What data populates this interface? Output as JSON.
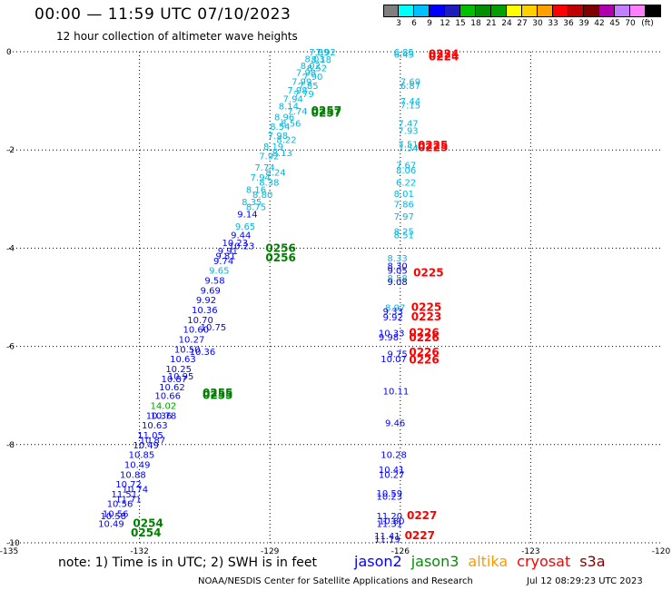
{
  "title": "00:00 — 11:59 UTC 07/10/2023",
  "subtitle": "12 hour collection of altimeter wave heights",
  "scale": {
    "colors": [
      "#7f7f7f",
      "#00ffff",
      "#00bfff",
      "#0000ff",
      "#1c1cc0",
      "#00c000",
      "#009000",
      "#00a000",
      "#ffff00",
      "#ffd000",
      "#ffa000",
      "#ff0000",
      "#c00000",
      "#800000",
      "#b000b0",
      "#c080ff",
      "#ff80ff",
      "#000000"
    ],
    "labels": [
      "3",
      "6",
      "9",
      "12",
      "15",
      "18",
      "21",
      "24",
      "27",
      "30",
      "33",
      "36",
      "39",
      "42",
      "45",
      "70",
      "(ft)"
    ]
  },
  "note": "note: 1) Time is in UTC; 2) SWH is in feet",
  "legend": [
    {
      "label": "jason2",
      "color": "#0000ff"
    },
    {
      "label": "jason3",
      "color": "#009000"
    },
    {
      "label": "altika",
      "color": "#ff9900"
    },
    {
      "label": "cryosat",
      "color": "#ff0000"
    },
    {
      "label": "s3a",
      "color": "#800000"
    }
  ],
  "footer_left": "NOAA/NESDIS Center for Satellite Applications and Research",
  "footer_right": "Jul 12 08:29:23 UTC 2023",
  "chart_data": {
    "type": "scatter",
    "xlim": [
      -135,
      -120
    ],
    "ylim": [
      -10,
      0
    ],
    "xticks": [
      "-135",
      "-132",
      "-129",
      "-126",
      "-123",
      "-120"
    ],
    "yticks": [
      "0",
      "-2",
      "-4",
      "-6",
      "-8",
      "-10"
    ],
    "grid": true,
    "track_a": [
      {
        "x": -128.1,
        "y": 0.0,
        "t": "7.89",
        "c": "#00b8e0"
      },
      {
        "x": -128.2,
        "y": -0.14,
        "t": "8.03",
        "c": "#00b8e0"
      },
      {
        "x": -128.3,
        "y": -0.28,
        "t": "8.02",
        "c": "#00b8e0"
      },
      {
        "x": -128.4,
        "y": -0.42,
        "t": "7.98",
        "c": "#00b8e0"
      },
      {
        "x": -128.5,
        "y": -0.6,
        "t": "7.99",
        "c": "#00b8e0"
      },
      {
        "x": -128.6,
        "y": -0.78,
        "t": "7.98",
        "c": "#00b8e0"
      },
      {
        "x": -128.7,
        "y": -0.95,
        "t": "7.94",
        "c": "#00b8e0"
      },
      {
        "x": -128.8,
        "y": -1.1,
        "t": "8.14",
        "c": "#00b8e0"
      },
      {
        "x": -128.9,
        "y": -1.32,
        "t": "8.96",
        "c": "#00b8e0"
      },
      {
        "x": -129.0,
        "y": -1.52,
        "t": "8.54",
        "c": "#00b8e0"
      },
      {
        "x": -129.05,
        "y": -1.7,
        "t": "7.98",
        "c": "#00b8e0"
      },
      {
        "x": -129.15,
        "y": -1.92,
        "t": "8.19",
        "c": "#00b8e0"
      },
      {
        "x": -129.25,
        "y": -2.12,
        "t": "7.92",
        "c": "#00b8e0"
      },
      {
        "x": -129.35,
        "y": -2.35,
        "t": "7.74",
        "c": "#00b8e0"
      },
      {
        "x": -129.45,
        "y": -2.55,
        "t": "7.94",
        "c": "#00b8e0"
      },
      {
        "x": -129.55,
        "y": -2.8,
        "t": "8.16",
        "c": "#00b8e0"
      },
      {
        "x": -129.65,
        "y": -3.05,
        "t": "8.35",
        "c": "#00b8e0"
      },
      {
        "x": -129.75,
        "y": -3.3,
        "t": "9.14",
        "c": "#0000ff"
      },
      {
        "x": -129.8,
        "y": -3.55,
        "t": "9.65",
        "c": "#00b8e0"
      },
      {
        "x": -129.9,
        "y": -3.72,
        "t": "9.44",
        "c": "#0000ff"
      },
      {
        "x": -130.1,
        "y": -3.88,
        "t": "10.23",
        "c": "#0000ff"
      },
      {
        "x": -130.2,
        "y": -4.05,
        "t": "9.91",
        "c": "#0000ff"
      },
      {
        "x": -130.3,
        "y": -4.25,
        "t": "9.74",
        "c": "#0000ff"
      },
      {
        "x": -130.4,
        "y": -4.45,
        "t": "9.65",
        "c": "#00b8e0"
      },
      {
        "x": -130.5,
        "y": -4.65,
        "t": "9.58",
        "c": "#0000ff"
      },
      {
        "x": -130.6,
        "y": -4.85,
        "t": "9.69",
        "c": "#0000ff"
      },
      {
        "x": -130.7,
        "y": -5.05,
        "t": "9.92",
        "c": "#0000ff"
      },
      {
        "x": -130.8,
        "y": -5.25,
        "t": "10.36",
        "c": "#0000ff"
      },
      {
        "x": -130.9,
        "y": -5.45,
        "t": "10.70",
        "c": "#0000ff"
      },
      {
        "x": -131.0,
        "y": -5.65,
        "t": "10.60",
        "c": "#0000ff"
      },
      {
        "x": -131.1,
        "y": -5.85,
        "t": "10.27",
        "c": "#0000ff"
      },
      {
        "x": -131.2,
        "y": -6.05,
        "t": "10.50",
        "c": "#0000ff"
      },
      {
        "x": -131.3,
        "y": -6.25,
        "t": "10.63",
        "c": "#0000ff"
      },
      {
        "x": -131.4,
        "y": -6.45,
        "t": "10.25",
        "c": "#0000ff"
      },
      {
        "x": -131.5,
        "y": -6.65,
        "t": "10.87",
        "c": "#0000ff"
      },
      {
        "x": -131.55,
        "y": -6.82,
        "t": "10.62",
        "c": "#0000ff"
      },
      {
        "x": -131.65,
        "y": -7.0,
        "t": "10.66",
        "c": "#0000ff"
      },
      {
        "x": -131.75,
        "y": -7.2,
        "t": "14.02",
        "c": "#00a000"
      },
      {
        "x": -131.85,
        "y": -7.4,
        "t": "10.36",
        "c": "#0000ff"
      },
      {
        "x": -131.95,
        "y": -7.6,
        "t": "10.63",
        "c": "#0000ff"
      },
      {
        "x": -132.05,
        "y": -7.8,
        "t": "11.05",
        "c": "#0000ff"
      },
      {
        "x": -132.15,
        "y": -8.0,
        "t": "10.49",
        "c": "#0000ff"
      },
      {
        "x": -132.25,
        "y": -8.2,
        "t": "10.85",
        "c": "#0000ff"
      },
      {
        "x": -132.35,
        "y": -8.4,
        "t": "10.49",
        "c": "#0000ff"
      },
      {
        "x": -132.45,
        "y": -8.6,
        "t": "10.88",
        "c": "#0000ff"
      },
      {
        "x": -132.55,
        "y": -8.8,
        "t": "10.72",
        "c": "#0000ff"
      },
      {
        "x": -132.65,
        "y": -9.0,
        "t": "11.51",
        "c": "#0000ff"
      },
      {
        "x": -132.75,
        "y": -9.2,
        "t": "10.56",
        "c": "#0000ff"
      },
      {
        "x": -132.85,
        "y": -9.4,
        "t": "10.56",
        "c": "#0000ff"
      },
      {
        "x": -132.95,
        "y": -9.6,
        "t": "10.49",
        "c": "#0000ff"
      }
    ],
    "track_b": [
      {
        "x": -127.95,
        "y": 0.0,
        "t": "7.92",
        "c": "#00b8e0"
      },
      {
        "x": -128.05,
        "y": -0.15,
        "t": "8.18",
        "c": "#00b8e0"
      },
      {
        "x": -128.15,
        "y": -0.32,
        "t": "8.52",
        "c": "#00b8e0"
      },
      {
        "x": -128.25,
        "y": -0.5,
        "t": "7.90",
        "c": "#00b8e0"
      },
      {
        "x": -128.35,
        "y": -0.68,
        "t": "7.85",
        "c": "#00b8e0"
      },
      {
        "x": -128.45,
        "y": -0.85,
        "t": "7.79",
        "c": "#00b8e0"
      },
      {
        "x": -128.6,
        "y": -1.2,
        "t": "7.74",
        "c": "#00b8e0"
      },
      {
        "x": -128.75,
        "y": -1.45,
        "t": "8.56",
        "c": "#00b8e0"
      },
      {
        "x": -128.85,
        "y": -1.78,
        "t": "8.22",
        "c": "#00b8e0"
      },
      {
        "x": -128.95,
        "y": -2.05,
        "t": "8.13",
        "c": "#00b8e0"
      },
      {
        "x": -129.1,
        "y": -2.45,
        "t": "8.24",
        "c": "#00b8e0"
      },
      {
        "x": -129.25,
        "y": -2.65,
        "t": "8.38",
        "c": "#00b8e0"
      },
      {
        "x": -129.4,
        "y": -2.9,
        "t": "8.80",
        "c": "#00b8e0"
      },
      {
        "x": -129.55,
        "y": -3.15,
        "t": "8.75",
        "c": "#00b8e0"
      },
      {
        "x": -129.95,
        "y": -3.95,
        "t": "10.23",
        "c": "#0000ff"
      },
      {
        "x": -130.25,
        "y": -4.15,
        "t": "9.81",
        "c": "#0000ff"
      },
      {
        "x": -130.6,
        "y": -5.6,
        "t": "10.75",
        "c": "#0000ff"
      },
      {
        "x": -130.85,
        "y": -6.1,
        "t": "10.36",
        "c": "#0000ff"
      },
      {
        "x": -131.35,
        "y": -6.6,
        "t": "10.95",
        "c": "#0000ff"
      },
      {
        "x": -131.75,
        "y": -7.4,
        "t": "10.78",
        "c": "#0000ff"
      },
      {
        "x": -132.0,
        "y": -7.9,
        "t": "10.87",
        "c": "#0000ff"
      },
      {
        "x": -132.4,
        "y": -8.9,
        "t": "10.74",
        "c": "#0000ff"
      },
      {
        "x": -132.55,
        "y": -9.1,
        "t": "11.71",
        "c": "#0000ff"
      },
      {
        "x": -132.9,
        "y": -9.45,
        "t": "10.58",
        "c": "#0000ff"
      }
    ],
    "track_c": [
      {
        "x": -126.15,
        "y": 0.0,
        "t": "6.85",
        "c": "#00b8e0"
      },
      {
        "x": -126.15,
        "y": -0.05,
        "t": "6.45",
        "c": "#00b8e0"
      },
      {
        "x": -126.0,
        "y": -0.6,
        "t": "7.69",
        "c": "#00b8e0"
      },
      {
        "x": -126.0,
        "y": -0.68,
        "t": "6.87",
        "c": "#00b8e0"
      },
      {
        "x": -126.0,
        "y": -1.0,
        "t": "7.44",
        "c": "#00b8e0"
      },
      {
        "x": -126.0,
        "y": -1.08,
        "t": "7.15",
        "c": "#00b8e0"
      },
      {
        "x": -126.05,
        "y": -1.45,
        "t": "7.47",
        "c": "#00b8e0"
      },
      {
        "x": -126.05,
        "y": -1.6,
        "t": "7.93",
        "c": "#00b8e0"
      },
      {
        "x": -126.05,
        "y": -1.88,
        "t": "7.51",
        "c": "#00b8e0"
      },
      {
        "x": -126.05,
        "y": -1.95,
        "t": "7.54",
        "c": "#00b8e0"
      },
      {
        "x": -126.1,
        "y": -2.3,
        "t": "7.67",
        "c": "#00b8e0"
      },
      {
        "x": -126.1,
        "y": -2.4,
        "t": "8.06",
        "c": "#00b8e0"
      },
      {
        "x": -126.1,
        "y": -2.65,
        "t": "6.22",
        "c": "#00b8e0"
      },
      {
        "x": -126.15,
        "y": -2.88,
        "t": "8.01",
        "c": "#00b8e0"
      },
      {
        "x": -126.15,
        "y": -3.1,
        "t": "7.86",
        "c": "#00b8e0"
      },
      {
        "x": -126.15,
        "y": -3.35,
        "t": "7.97",
        "c": "#00b8e0"
      },
      {
        "x": -126.15,
        "y": -3.65,
        "t": "8.25",
        "c": "#00b8e0"
      },
      {
        "x": -126.15,
        "y": -3.72,
        "t": "8.51",
        "c": "#00b8e0"
      },
      {
        "x": -126.3,
        "y": -4.2,
        "t": "8.33",
        "c": "#00b8e0"
      },
      {
        "x": -126.3,
        "y": -4.35,
        "t": "8.30",
        "c": "#0000ff"
      },
      {
        "x": -126.3,
        "y": -4.45,
        "t": "9.05",
        "c": "#0000ff"
      },
      {
        "x": -126.3,
        "y": -4.6,
        "t": "8.58",
        "c": "#00b8e0"
      },
      {
        "x": -126.3,
        "y": -4.68,
        "t": "9.08",
        "c": "#0000ff"
      },
      {
        "x": -126.35,
        "y": -5.2,
        "t": "8.97",
        "c": "#00b8e0"
      },
      {
        "x": -126.4,
        "y": -5.28,
        "t": "9.33",
        "c": "#0000ff"
      },
      {
        "x": -126.4,
        "y": -5.4,
        "t": "9.92",
        "c": "#0000ff"
      },
      {
        "x": -126.5,
        "y": -5.72,
        "t": "10.33",
        "c": "#0000ff"
      },
      {
        "x": -126.5,
        "y": -5.8,
        "t": "9.98",
        "c": "#0000ff"
      },
      {
        "x": -126.3,
        "y": -6.15,
        "t": "9.75",
        "c": "#0000ff"
      },
      {
        "x": -126.45,
        "y": -6.25,
        "t": "10.07",
        "c": "#0000ff"
      },
      {
        "x": -126.4,
        "y": -6.9,
        "t": "10.11",
        "c": "#0000ff"
      },
      {
        "x": -126.35,
        "y": -7.55,
        "t": "9.46",
        "c": "#0000ff"
      },
      {
        "x": -126.45,
        "y": -8.2,
        "t": "10.28",
        "c": "#0000ff"
      },
      {
        "x": -126.5,
        "y": -8.5,
        "t": "10.41",
        "c": "#0000ff"
      },
      {
        "x": -126.5,
        "y": -8.6,
        "t": "10.27",
        "c": "#0000ff"
      },
      {
        "x": -126.55,
        "y": -8.98,
        "t": "10.59",
        "c": "#0000ff"
      },
      {
        "x": -126.55,
        "y": -9.05,
        "t": "10.23",
        "c": "#0000ff"
      },
      {
        "x": -126.55,
        "y": -9.45,
        "t": "11.20",
        "c": "#0000ff"
      },
      {
        "x": -126.5,
        "y": -9.55,
        "t": "10.80",
        "c": "#0000ff"
      },
      {
        "x": -126.55,
        "y": -9.6,
        "t": "11.31",
        "c": "#0000ff"
      },
      {
        "x": -126.6,
        "y": -9.85,
        "t": "11.41",
        "c": "#0000ff"
      },
      {
        "x": -126.6,
        "y": -9.92,
        "t": "11.19",
        "c": "#0000ff"
      }
    ],
    "time_labels": [
      {
        "x": -128.05,
        "y": -1.2,
        "t": "0257",
        "c": "#008000"
      },
      {
        "x": -128.05,
        "y": -1.25,
        "t": "0257",
        "c": "#008000"
      },
      {
        "x": -129.1,
        "y": -4.0,
        "t": "0256",
        "c": "#008000"
      },
      {
        "x": -129.1,
        "y": -4.2,
        "t": "0256",
        "c": "#008000"
      },
      {
        "x": -130.55,
        "y": -6.95,
        "t": "0255",
        "c": "#008000"
      },
      {
        "x": -130.55,
        "y": -7.0,
        "t": "0255",
        "c": "#008000"
      },
      {
        "x": -132.15,
        "y": -9.6,
        "t": "0254",
        "c": "#008000"
      },
      {
        "x": -132.2,
        "y": -9.8,
        "t": "0254",
        "c": "#008000"
      },
      {
        "x": -125.35,
        "y": -0.05,
        "t": "0224",
        "c": "#ff0000"
      },
      {
        "x": -125.35,
        "y": -0.1,
        "t": "0224",
        "c": "#ff0000"
      },
      {
        "x": -125.6,
        "y": -1.9,
        "t": "0225",
        "c": "#ff0000"
      },
      {
        "x": -125.6,
        "y": -1.95,
        "t": "0225",
        "c": "#ff0000"
      },
      {
        "x": -125.7,
        "y": -4.5,
        "t": "0225",
        "c": "#ff0000"
      },
      {
        "x": -125.75,
        "y": -5.2,
        "t": "0225",
        "c": "#ff0000"
      },
      {
        "x": -125.75,
        "y": -5.4,
        "t": "0223",
        "c": "#ff0000"
      },
      {
        "x": -125.8,
        "y": -5.72,
        "t": "0226",
        "c": "#ff0000"
      },
      {
        "x": -125.8,
        "y": -5.82,
        "t": "0226",
        "c": "#ff0000"
      },
      {
        "x": -125.8,
        "y": -6.12,
        "t": "0226",
        "c": "#ff0000"
      },
      {
        "x": -125.8,
        "y": -6.28,
        "t": "0226",
        "c": "#ff0000"
      },
      {
        "x": -125.85,
        "y": -9.45,
        "t": "0227",
        "c": "#ff0000"
      },
      {
        "x": -125.9,
        "y": -9.85,
        "t": "0227",
        "c": "#ff0000"
      }
    ]
  }
}
